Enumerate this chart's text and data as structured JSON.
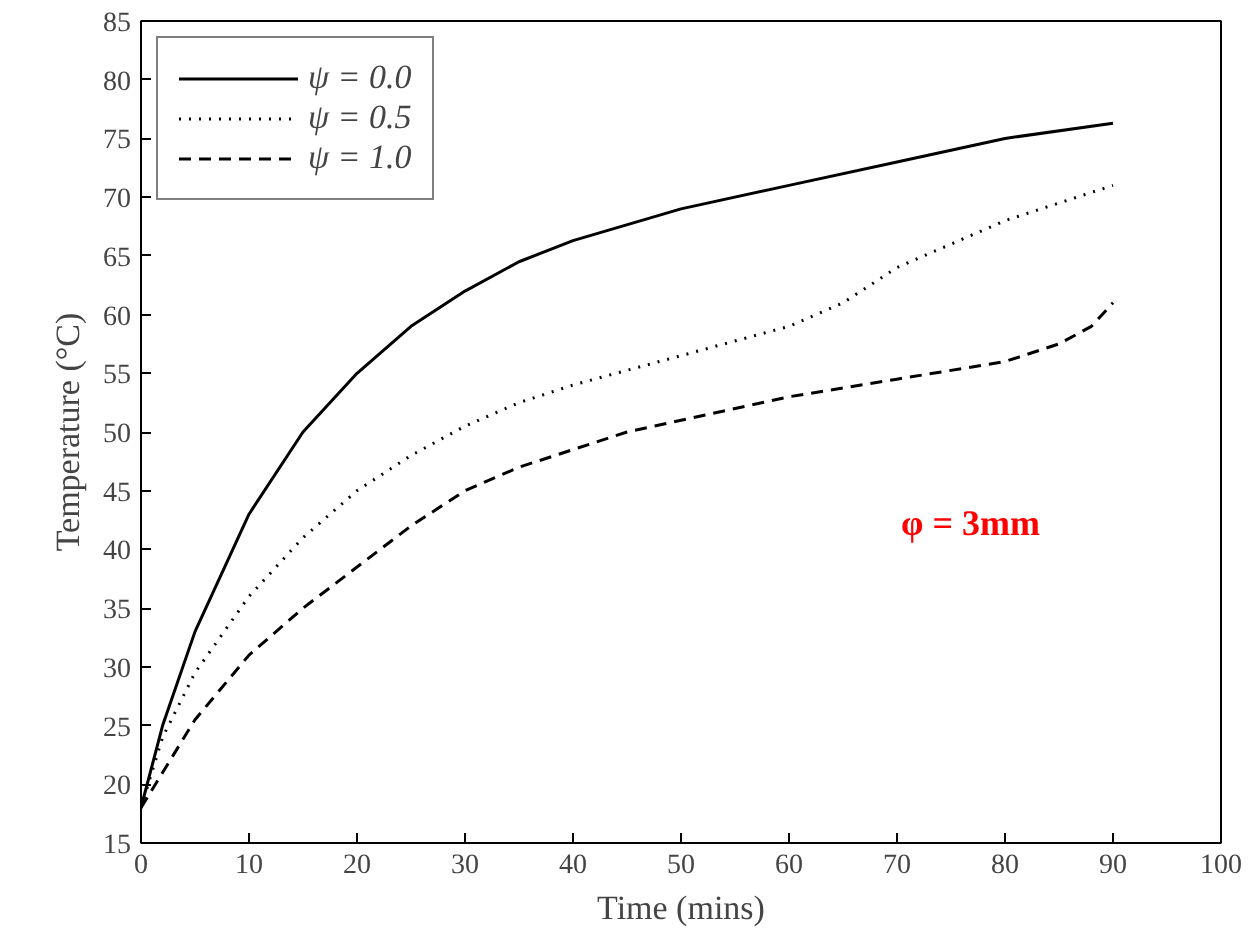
{
  "chart_data": {
    "type": "line",
    "xlabel": "Time (mins)",
    "ylabel": "Temperature (°C)",
    "xlim": [
      0,
      100
    ],
    "ylim": [
      15,
      85
    ],
    "xticks": [
      0,
      10,
      20,
      30,
      40,
      50,
      60,
      70,
      80,
      90,
      100
    ],
    "yticks": [
      15,
      20,
      25,
      30,
      35,
      40,
      45,
      50,
      55,
      60,
      65,
      70,
      75,
      80,
      85
    ],
    "grid": false,
    "legend": "top left",
    "marker": "none",
    "annotations": [
      "φ = 3mm"
    ],
    "series": [
      {
        "name": "ψ = 0.0",
        "color": "#000000",
        "line_style": "solid",
        "x": [
          0,
          2,
          5,
          10,
          15,
          20,
          25,
          30,
          35,
          40,
          50,
          60,
          70,
          80,
          90
        ],
        "values": [
          18,
          25,
          33,
          43,
          50,
          55,
          59,
          62,
          64.5,
          66.3,
          69,
          71,
          73,
          75,
          76.3
        ]
      },
      {
        "name": "ψ = 0.5",
        "color": "#000000",
        "line_style": "dotted",
        "x": [
          0,
          2,
          5,
          10,
          15,
          20,
          25,
          30,
          35,
          40,
          50,
          60,
          65,
          70,
          80,
          90
        ],
        "values": [
          18,
          24,
          29.5,
          36,
          41,
          45,
          48,
          50.5,
          52.5,
          54,
          56.5,
          59,
          61,
          64,
          68,
          71
        ]
      },
      {
        "name": "ψ = 1.0",
        "color": "#000000",
        "line_style": "dashed",
        "x": [
          0,
          2,
          5,
          10,
          15,
          20,
          25,
          30,
          35,
          40,
          45,
          50,
          60,
          70,
          80,
          85,
          88,
          90
        ],
        "values": [
          18,
          21,
          25.5,
          31,
          35,
          38.5,
          42,
          45,
          47,
          48.5,
          50,
          51,
          53,
          54.5,
          56,
          57.5,
          59,
          61
        ]
      }
    ]
  }
}
